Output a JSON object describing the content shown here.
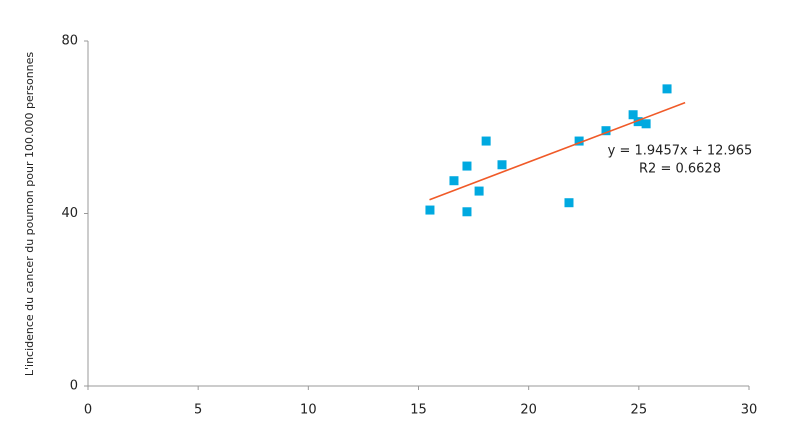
{
  "chart_data": {
    "type": "scatter",
    "y_label": "L'incidence du cancer du poumon pour 100.000 personnes",
    "annotations": [
      "y = 1.9457x + 12.965",
      "R2 = 0.6628"
    ],
    "xlim": [
      0,
      30
    ],
    "xticks": [
      0,
      5,
      10,
      15,
      20,
      25,
      30
    ],
    "ylim": [
      0,
      80
    ],
    "yticks": [
      0,
      40,
      80
    ],
    "grid": false,
    "series": [
      {
        "color": "#00a9e0",
        "marker": "square",
        "x": [
          15.52,
          16.61,
          17.2,
          17.2,
          17.75,
          18.07,
          18.79,
          21.83,
          22.29,
          23.51,
          24.74,
          24.97,
          25.33,
          26.28
        ],
        "values": [
          40.8,
          47.6,
          51.0,
          40.4,
          45.2,
          56.8,
          51.3,
          42.5,
          56.8,
          59.2,
          62.9,
          61.3,
          60.8,
          68.9
        ]
      },
      {
        "color": "#f05a28",
        "marker": "line",
        "x": [
          15.5,
          27.1
        ],
        "values": [
          43.2,
          65.7
        ]
      }
    ]
  }
}
